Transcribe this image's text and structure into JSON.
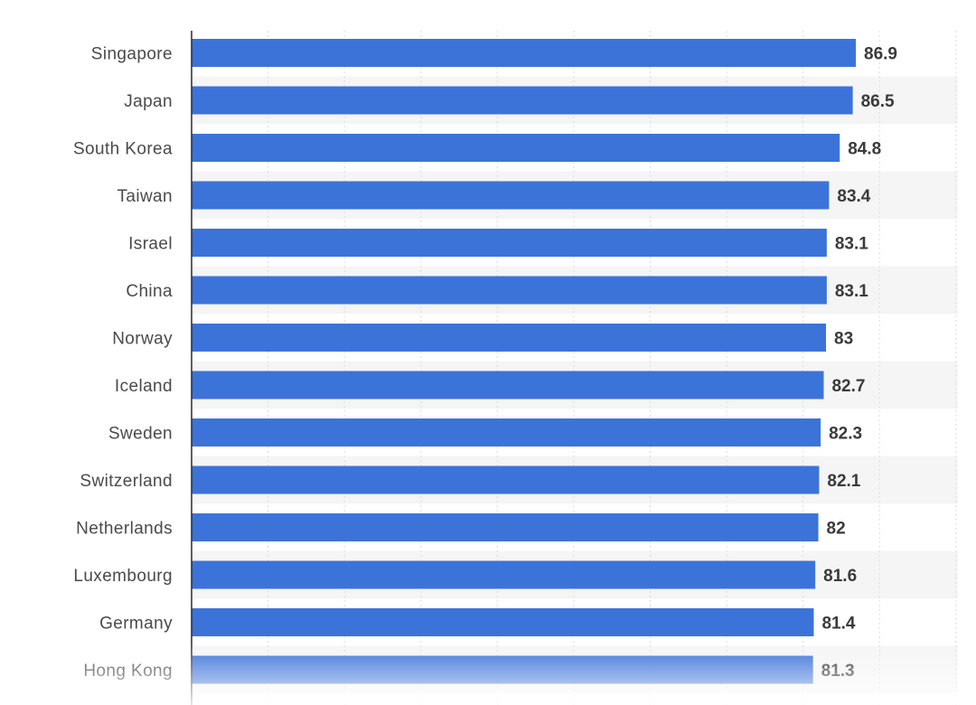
{
  "chart_data": {
    "type": "bar",
    "orientation": "horizontal",
    "categories": [
      "Singapore",
      "Japan",
      "South Korea",
      "Taiwan",
      "Israel",
      "China",
      "Norway",
      "Iceland",
      "Sweden",
      "Switzerland",
      "Netherlands",
      "Luxembourg",
      "Germany",
      "Hong Kong"
    ],
    "values": [
      86.9,
      86.5,
      84.8,
      83.4,
      83.1,
      83.1,
      83,
      82.7,
      82.3,
      82.1,
      82,
      81.6,
      81.4,
      81.3
    ],
    "value_labels": [
      "86.9",
      "86.5",
      "84.8",
      "83.4",
      "83.1",
      "83.1",
      "83",
      "82.7",
      "82.3",
      "82.1",
      "82",
      "81.6",
      "81.4",
      "81.3"
    ],
    "title": "",
    "xlabel": "",
    "ylabel": "",
    "xlim": [
      0,
      100
    ],
    "grid": true,
    "legend": "none",
    "colors": {
      "bar": "#3c73d9",
      "axis": "#2b2b2b",
      "label": "#4a4a4a",
      "value_label": "#3a3a3a",
      "gridline": "#dcdcdc",
      "row_band": "#f5f5f5"
    }
  }
}
